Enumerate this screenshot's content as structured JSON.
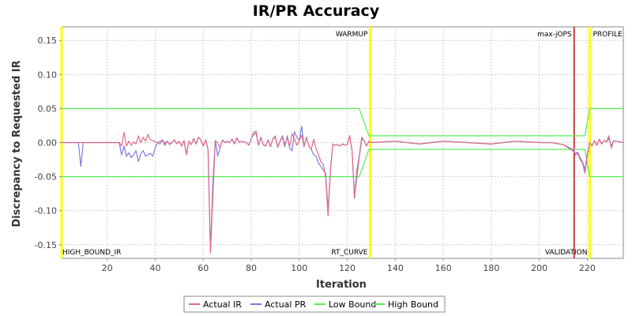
{
  "chart_data": {
    "type": "line",
    "title": "IR/PR Accuracy",
    "xlabel": "Iteration",
    "ylabel": "Discrepancy to Requested IR",
    "xlim": [
      1,
      235
    ],
    "ylim": [
      -0.17,
      0.17
    ],
    "xticks": [
      20,
      40,
      60,
      80,
      100,
      120,
      140,
      160,
      180,
      200,
      220
    ],
    "yticks": [
      -0.15,
      -0.1,
      -0.05,
      0.0,
      0.05,
      0.1,
      0.15
    ],
    "ytick_labels": [
      "-0.15",
      "-0.10",
      "-0.05",
      "0.00",
      "0.05",
      "0.10",
      "0.15"
    ],
    "grid": true,
    "legend_position": "bottom",
    "markers": [
      {
        "label": "WARMUP",
        "x": 129.5,
        "color": "#ffff00",
        "label_position": "top"
      },
      {
        "label": "max-jOPS",
        "x": 214.5,
        "color": "#cc0000",
        "label_position": "top"
      },
      {
        "label": "PROFILE",
        "x": 221,
        "color": "#ffff00",
        "label_position": "top"
      },
      {
        "label": "HIGH_BOUND_IR",
        "x": 1,
        "color": "#ffff00",
        "label_position": "bottom"
      },
      {
        "label": "RT_CURVE",
        "x": 129.5,
        "color": "#ffff00",
        "label_position": "bottom"
      },
      {
        "label": "VALIDATION",
        "x": 221,
        "color": "#ffff00",
        "label_position": "bottom"
      }
    ],
    "series": [
      {
        "name": "Actual IR",
        "color": "#e06b8a",
        "points": [
          [
            1,
            0
          ],
          [
            25,
            0
          ],
          [
            26,
            -0.005
          ],
          [
            27,
            0.015
          ],
          [
            28,
            -0.005
          ],
          [
            29,
            0.002
          ],
          [
            30,
            -0.004
          ],
          [
            31,
            0.001
          ],
          [
            32,
            -0.002
          ],
          [
            33,
            0.01
          ],
          [
            34,
            0
          ],
          [
            35,
            0.008
          ],
          [
            36,
            0.002
          ],
          [
            37,
            0.012
          ],
          [
            38,
            0.004
          ],
          [
            39,
            0.003
          ],
          [
            40,
            0.001
          ],
          [
            41,
            0
          ],
          [
            42,
            0.002
          ],
          [
            43,
            0.004
          ],
          [
            44,
            -0.001
          ],
          [
            45,
            0.002
          ],
          [
            46,
            -0.003
          ],
          [
            47,
            0
          ],
          [
            48,
            0.004
          ],
          [
            49,
            -0.002
          ],
          [
            50,
            0.002
          ],
          [
            51,
            -0.005
          ],
          [
            52,
            0.003
          ],
          [
            53,
            -0.018
          ],
          [
            54,
            0.002
          ],
          [
            55,
            -0.003
          ],
          [
            56,
            0.006
          ],
          [
            57,
            -0.002
          ],
          [
            58,
            0.008
          ],
          [
            59,
            0.004
          ],
          [
            60,
            -0.005
          ],
          [
            61,
            0.004
          ],
          [
            62,
            -0.01
          ],
          [
            63,
            -0.162
          ],
          [
            64,
            -0.08
          ],
          [
            65,
            0.003
          ],
          [
            66,
            0
          ],
          [
            67,
            -0.008
          ],
          [
            68,
            0.004
          ],
          [
            69,
            0
          ],
          [
            70,
            0.002
          ],
          [
            71,
            0
          ],
          [
            72,
            0.005
          ],
          [
            73,
            -0.002
          ],
          [
            74,
            0.007
          ],
          [
            75,
            0
          ],
          [
            76,
            0.002
          ],
          [
            77,
            0.001
          ],
          [
            78,
            0
          ],
          [
            79,
            -0.004
          ],
          [
            80,
            0.006
          ],
          [
            81,
            0.015
          ],
          [
            82,
            0.017
          ],
          [
            83,
            -0.004
          ],
          [
            84,
            0.008
          ],
          [
            85,
            -0.003
          ],
          [
            86,
            -0.005
          ],
          [
            87,
            0.004
          ],
          [
            88,
            -0.006
          ],
          [
            89,
            0.005
          ],
          [
            90,
            0.01
          ],
          [
            91,
            -0.007
          ],
          [
            92,
            0.002
          ],
          [
            93,
            0.01
          ],
          [
            94,
            -0.003
          ],
          [
            95,
            0.007
          ],
          [
            96,
            -0.005
          ],
          [
            97,
            0.013
          ],
          [
            98,
            0.005
          ],
          [
            99,
            -0.004
          ],
          [
            100,
            0.003
          ],
          [
            101,
            0.011
          ],
          [
            102,
            -0.005
          ],
          [
            103,
            0.008
          ],
          [
            104,
            -0.005
          ],
          [
            105,
            -0.01
          ],
          [
            106,
            0.005
          ],
          [
            107,
            -0.009
          ],
          [
            108,
            -0.018
          ],
          [
            109,
            -0.028
          ],
          [
            110,
            -0.032
          ],
          [
            111,
            -0.05
          ],
          [
            112,
            -0.108
          ],
          [
            113,
            -0.04
          ],
          [
            114,
            -0.002
          ],
          [
            115,
            -0.004
          ],
          [
            116,
            -0.003
          ],
          [
            117,
            -0.005
          ],
          [
            118,
            -0.002
          ],
          [
            119,
            -0.004
          ],
          [
            120,
            -0.003
          ],
          [
            121,
            0.01
          ],
          [
            122,
            -0.012
          ],
          [
            123,
            -0.08
          ],
          [
            124,
            -0.04
          ],
          [
            125,
            -0.02
          ],
          [
            126,
            0.008
          ],
          [
            127,
            0.003
          ],
          [
            128,
            -0.005
          ],
          [
            129,
            0.002
          ],
          [
            130,
            0
          ],
          [
            140,
            0.002
          ],
          [
            150,
            -0.002
          ],
          [
            160,
            0.002
          ],
          [
            170,
            0
          ],
          [
            180,
            -0.002
          ],
          [
            190,
            0.002
          ],
          [
            200,
            0
          ],
          [
            205,
            0
          ],
          [
            210,
            -0.003
          ],
          [
            214,
            -0.012
          ],
          [
            215,
            -0.018
          ],
          [
            216,
            -0.016
          ],
          [
            217,
            -0.025
          ],
          [
            218,
            -0.03
          ],
          [
            219,
            -0.045
          ],
          [
            220,
            -0.02
          ],
          [
            221,
            0
          ],
          [
            222,
            -0.005
          ],
          [
            223,
            0.003
          ],
          [
            224,
            -0.004
          ],
          [
            225,
            0.005
          ],
          [
            226,
            -0.002
          ],
          [
            227,
            0.003
          ],
          [
            228,
            0.001
          ],
          [
            229,
            0.01
          ],
          [
            230,
            -0.008
          ],
          [
            231,
            0.003
          ],
          [
            232,
            0.002
          ],
          [
            235,
            0
          ]
        ]
      },
      {
        "name": "Actual PR",
        "color": "#7b7bdf",
        "points": [
          [
            1,
            0
          ],
          [
            8,
            0
          ],
          [
            9,
            -0.035
          ],
          [
            10,
            0
          ],
          [
            25,
            0
          ],
          [
            26,
            -0.018
          ],
          [
            27,
            -0.005
          ],
          [
            28,
            -0.02
          ],
          [
            29,
            -0.015
          ],
          [
            30,
            -0.022
          ],
          [
            31,
            -0.018
          ],
          [
            32,
            -0.012
          ],
          [
            33,
            -0.028
          ],
          [
            34,
            -0.016
          ],
          [
            35,
            -0.012
          ],
          [
            36,
            -0.02
          ],
          [
            37,
            -0.018
          ],
          [
            38,
            -0.016
          ],
          [
            39,
            -0.02
          ],
          [
            40,
            -0.008
          ],
          [
            41,
            0
          ],
          [
            42,
            -0.002
          ],
          [
            43,
            0.004
          ],
          [
            44,
            -0.004
          ],
          [
            45,
            0.002
          ],
          [
            46,
            -0.002
          ],
          [
            47,
            0
          ],
          [
            48,
            0.004
          ],
          [
            49,
            -0.002
          ],
          [
            50,
            0.002
          ],
          [
            51,
            -0.005
          ],
          [
            52,
            0.003
          ],
          [
            53,
            -0.018
          ],
          [
            54,
            0.002
          ],
          [
            55,
            -0.003
          ],
          [
            56,
            0.006
          ],
          [
            57,
            -0.002
          ],
          [
            58,
            0.008
          ],
          [
            59,
            0.004
          ],
          [
            60,
            -0.005
          ],
          [
            61,
            0.004
          ],
          [
            62,
            -0.01
          ],
          [
            63,
            -0.16
          ],
          [
            64,
            -0.06
          ],
          [
            65,
            0.003
          ],
          [
            66,
            -0.02
          ],
          [
            67,
            -0.008
          ],
          [
            68,
            0.004
          ],
          [
            69,
            0
          ],
          [
            70,
            0.002
          ],
          [
            71,
            0
          ],
          [
            72,
            0.005
          ],
          [
            73,
            -0.002
          ],
          [
            74,
            0.007
          ],
          [
            75,
            0
          ],
          [
            76,
            0.002
          ],
          [
            77,
            0.001
          ],
          [
            78,
            0
          ],
          [
            79,
            -0.004
          ],
          [
            80,
            0.006
          ],
          [
            81,
            0.012
          ],
          [
            82,
            0.014
          ],
          [
            83,
            -0.004
          ],
          [
            84,
            0.008
          ],
          [
            85,
            -0.003
          ],
          [
            86,
            -0.005
          ],
          [
            87,
            0.004
          ],
          [
            88,
            -0.006
          ],
          [
            89,
            0.005
          ],
          [
            90,
            0.008
          ],
          [
            91,
            -0.007
          ],
          [
            92,
            0.002
          ],
          [
            93,
            0.008
          ],
          [
            94,
            -0.006
          ],
          [
            95,
            0.01
          ],
          [
            96,
            -0.008
          ],
          [
            97,
            -0.012
          ],
          [
            98,
            0.016
          ],
          [
            99,
            0.008
          ],
          [
            100,
            0.003
          ],
          [
            101,
            0.024
          ],
          [
            102,
            -0.006
          ],
          [
            103,
            0.008
          ],
          [
            104,
            -0.005
          ],
          [
            105,
            -0.01
          ],
          [
            106,
            -0.018
          ],
          [
            107,
            -0.02
          ],
          [
            108,
            -0.03
          ],
          [
            109,
            -0.035
          ],
          [
            110,
            -0.04
          ],
          [
            111,
            -0.045
          ],
          [
            112,
            -0.1
          ],
          [
            113,
            -0.04
          ],
          [
            114,
            -0.002
          ],
          [
            115,
            -0.004
          ],
          [
            116,
            -0.003
          ],
          [
            117,
            -0.005
          ],
          [
            118,
            -0.002
          ],
          [
            119,
            -0.004
          ],
          [
            120,
            -0.003
          ],
          [
            121,
            0.01
          ],
          [
            122,
            -0.012
          ],
          [
            123,
            -0.082
          ],
          [
            124,
            -0.05
          ],
          [
            125,
            -0.022
          ],
          [
            126,
            0.005
          ],
          [
            127,
            0.003
          ],
          [
            128,
            -0.005
          ],
          [
            129,
            0.002
          ],
          [
            130,
            0
          ],
          [
            140,
            0.002
          ],
          [
            150,
            -0.002
          ],
          [
            160,
            0.002
          ],
          [
            170,
            0
          ],
          [
            180,
            -0.002
          ],
          [
            190,
            0.002
          ],
          [
            200,
            0
          ],
          [
            205,
            0
          ],
          [
            210,
            -0.003
          ],
          [
            214,
            -0.01
          ],
          [
            215,
            -0.016
          ],
          [
            216,
            -0.014
          ],
          [
            217,
            -0.022
          ],
          [
            218,
            -0.028
          ],
          [
            219,
            -0.04
          ],
          [
            220,
            -0.018
          ],
          [
            221,
            0
          ],
          [
            222,
            -0.005
          ],
          [
            223,
            0.003
          ],
          [
            224,
            -0.004
          ],
          [
            225,
            0.005
          ],
          [
            226,
            -0.002
          ],
          [
            227,
            0.003
          ],
          [
            228,
            0.001
          ],
          [
            229,
            0.006
          ],
          [
            230,
            -0.005
          ],
          [
            231,
            0.003
          ],
          [
            232,
            0.002
          ],
          [
            235,
            0
          ]
        ]
      },
      {
        "name": "Low Bound",
        "color": "#55ee55",
        "points": [
          [
            1,
            -0.05
          ],
          [
            125,
            -0.05
          ],
          [
            129,
            -0.01
          ],
          [
            213,
            -0.01
          ],
          [
            219,
            -0.01
          ],
          [
            221,
            -0.05
          ],
          [
            235,
            -0.05
          ]
        ]
      },
      {
        "name": "High Bound",
        "color": "#55ee55",
        "points": [
          [
            1,
            0.05
          ],
          [
            125,
            0.05
          ],
          [
            129,
            0.01
          ],
          [
            213,
            0.01
          ],
          [
            219,
            0.01
          ],
          [
            221,
            0.05
          ],
          [
            235,
            0.05
          ]
        ]
      }
    ]
  }
}
